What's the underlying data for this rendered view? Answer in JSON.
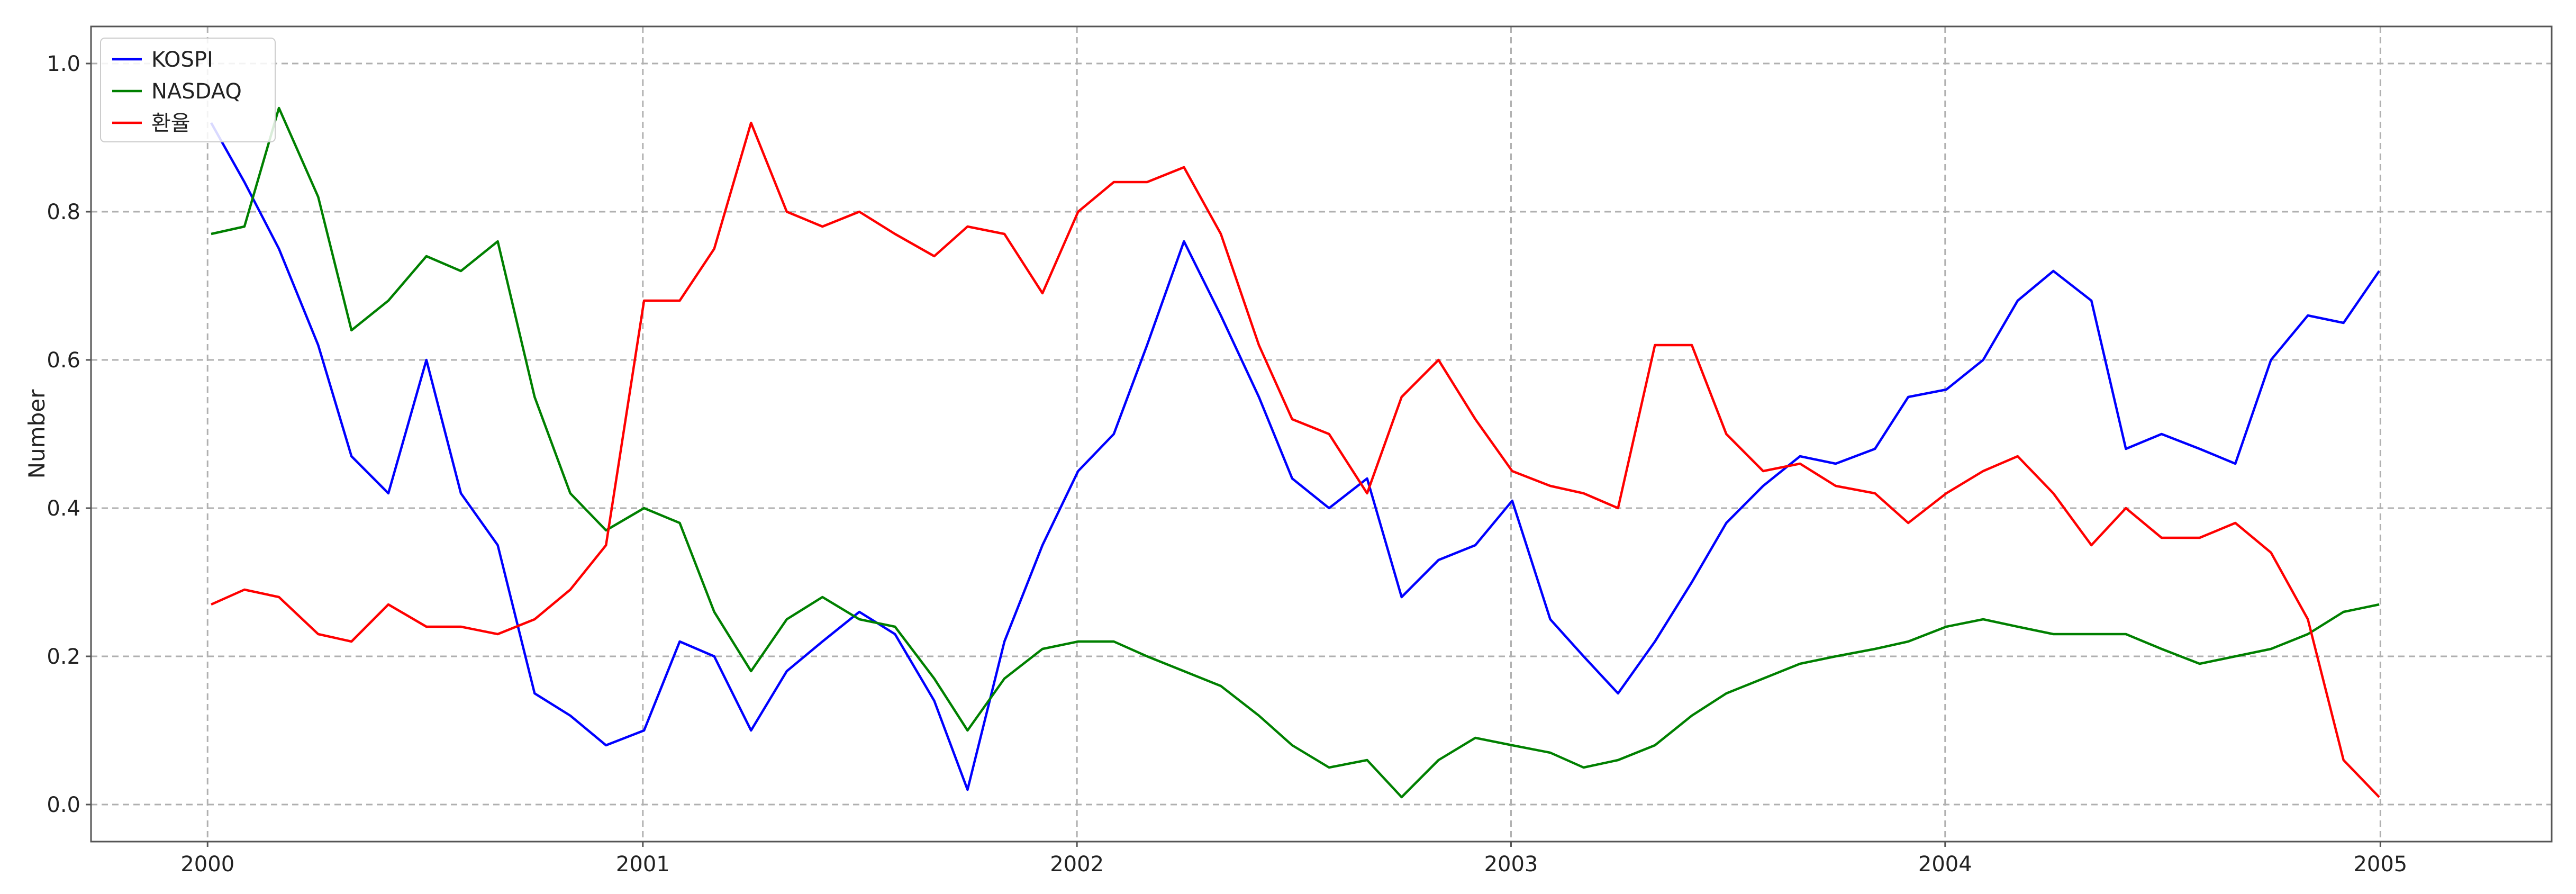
{
  "chart_data": {
    "type": "line",
    "ylabel": "Number",
    "x_ticks": [
      "2000",
      "2001",
      "2002",
      "2003",
      "2004",
      "2005"
    ],
    "y_ticks": [
      "0.0",
      "0.2",
      "0.4",
      "0.6",
      "0.8",
      "1.0"
    ],
    "xlim": [
      "1999-09-25",
      "2005-05-25"
    ],
    "ylim": [
      -0.05,
      1.05
    ],
    "grid": true,
    "legend_position": "top-left",
    "x": [
      "2000-01-04",
      "2000-02-01",
      "2000-03-01",
      "2000-04-03",
      "2000-05-01",
      "2000-06-01",
      "2000-07-03",
      "2000-08-01",
      "2000-09-01",
      "2000-10-02",
      "2000-11-01",
      "2000-12-01",
      "2001-01-02",
      "2001-02-01",
      "2001-03-02",
      "2001-04-02",
      "2001-05-02",
      "2001-06-01",
      "2001-07-02",
      "2001-08-01",
      "2001-09-03",
      "2001-10-01",
      "2001-11-01",
      "2001-12-03",
      "2002-01-02",
      "2002-02-01",
      "2002-03-01",
      "2002-04-01",
      "2002-05-02",
      "2002-06-03",
      "2002-07-01",
      "2002-08-01",
      "2002-09-02",
      "2002-10-01",
      "2002-11-01",
      "2002-12-02",
      "2003-01-02",
      "2003-02-03",
      "2003-03-03",
      "2003-04-01",
      "2003-05-02",
      "2003-06-02",
      "2003-07-01",
      "2003-08-01",
      "2003-09-01",
      "2003-10-01",
      "2003-11-03",
      "2003-12-01",
      "2004-01-02",
      "2004-02-02",
      "2004-03-02",
      "2004-04-01",
      "2004-05-03",
      "2004-06-01",
      "2004-07-01",
      "2004-08-02",
      "2004-09-01",
      "2004-10-01",
      "2004-11-01",
      "2004-12-01",
      "2004-12-31"
    ],
    "series": [
      {
        "name": "KOSPI",
        "color": "#0000ff",
        "values": [
          0.92,
          0.84,
          0.75,
          0.62,
          0.47,
          0.42,
          0.6,
          0.42,
          0.35,
          0.15,
          0.12,
          0.08,
          0.1,
          0.22,
          0.2,
          0.1,
          0.18,
          0.22,
          0.26,
          0.23,
          0.14,
          0.02,
          0.22,
          0.35,
          0.45,
          0.5,
          0.62,
          0.76,
          0.66,
          0.55,
          0.44,
          0.4,
          0.44,
          0.28,
          0.33,
          0.35,
          0.41,
          0.25,
          0.2,
          0.15,
          0.22,
          0.3,
          0.38,
          0.43,
          0.47,
          0.46,
          0.48,
          0.55,
          0.56,
          0.6,
          0.68,
          0.72,
          0.68,
          0.48,
          0.5,
          0.48,
          0.46,
          0.6,
          0.66,
          0.65,
          0.72
        ]
      },
      {
        "name": "NASDAQ",
        "color": "#008000",
        "values": [
          0.77,
          0.78,
          0.94,
          0.82,
          0.64,
          0.68,
          0.74,
          0.72,
          0.76,
          0.55,
          0.42,
          0.37,
          0.4,
          0.38,
          0.26,
          0.18,
          0.25,
          0.28,
          0.25,
          0.24,
          0.17,
          0.1,
          0.17,
          0.21,
          0.22,
          0.22,
          0.2,
          0.18,
          0.16,
          0.12,
          0.08,
          0.05,
          0.06,
          0.01,
          0.06,
          0.09,
          0.08,
          0.07,
          0.05,
          0.06,
          0.08,
          0.12,
          0.15,
          0.17,
          0.19,
          0.2,
          0.21,
          0.22,
          0.24,
          0.25,
          0.24,
          0.23,
          0.23,
          0.23,
          0.21,
          0.19,
          0.2,
          0.21,
          0.23,
          0.26,
          0.27
        ]
      },
      {
        "name": "환율",
        "color": "#ff0000",
        "values": [
          0.27,
          0.29,
          0.28,
          0.23,
          0.22,
          0.27,
          0.24,
          0.24,
          0.23,
          0.25,
          0.29,
          0.35,
          0.68,
          0.68,
          0.75,
          0.92,
          0.8,
          0.78,
          0.8,
          0.77,
          0.74,
          0.78,
          0.77,
          0.69,
          0.8,
          0.84,
          0.84,
          0.86,
          0.77,
          0.62,
          0.52,
          0.5,
          0.42,
          0.55,
          0.6,
          0.52,
          0.45,
          0.43,
          0.42,
          0.4,
          0.62,
          0.62,
          0.5,
          0.45,
          0.46,
          0.43,
          0.42,
          0.38,
          0.42,
          0.45,
          0.47,
          0.42,
          0.35,
          0.4,
          0.36,
          0.36,
          0.38,
          0.34,
          0.25,
          0.06,
          0.01
        ]
      }
    ]
  }
}
